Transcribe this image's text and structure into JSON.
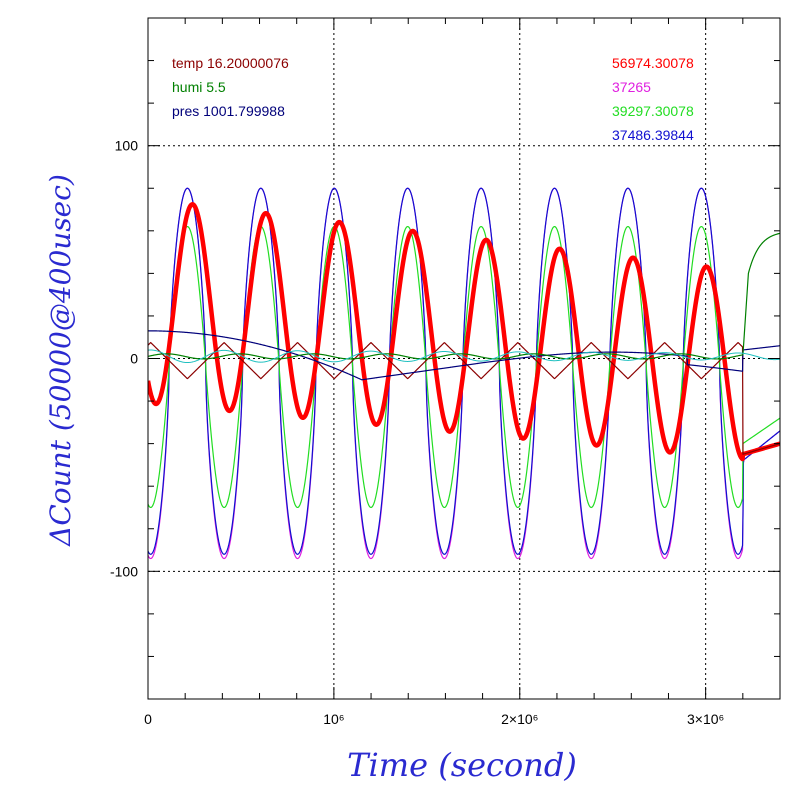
{
  "chart_data": {
    "type": "line",
    "xlabel": "Time (second)",
    "ylabel": "ΔCount (50000@400usec)",
    "xlim": [
      0,
      3400000
    ],
    "ylim": [
      -160,
      160
    ],
    "x_ticks": [
      {
        "value": 0,
        "label": "0"
      },
      {
        "value": 1000000,
        "label": "10⁶"
      },
      {
        "value": 2000000,
        "label": "2×10⁶"
      },
      {
        "value": 3000000,
        "label": "3×10⁶"
      }
    ],
    "y_ticks": [
      {
        "value": 100,
        "label": "100"
      },
      {
        "value": 0,
        "label": "0"
      },
      {
        "value": -100,
        "label": "-100"
      }
    ],
    "grid": "dotted at labeled ticks",
    "legend_left": [
      {
        "text": "temp 16.20000076",
        "color": "#8b0000"
      },
      {
        "text": "humi 5.5",
        "color": "#008000"
      },
      {
        "text": "pres 1001.799988",
        "color": "#00007a"
      }
    ],
    "legend_right": [
      {
        "text": "56974.30078",
        "color": "#ff0000"
      },
      {
        "text": "37265",
        "color": "#e020e0"
      },
      {
        "text": "39297.30078",
        "color": "#22dd22"
      },
      {
        "text": "37486.39844",
        "color": "#1010d0"
      }
    ],
    "series": [
      {
        "color": "#e020e0",
        "width": 1.2,
        "model": "magenta",
        "phase_x": 212000,
        "period": 395000,
        "amp_start": 87,
        "amp_end": 87,
        "offset": -7,
        "sharp": 1.5
      },
      {
        "color": "#1010d0",
        "width": 1.2,
        "model": "blue",
        "phase_x": 212000,
        "period": 395000,
        "amp_start": 86,
        "amp_end": 86,
        "offset": -6,
        "sharp": 1.5
      },
      {
        "color": "#22dd22",
        "width": 1.2,
        "model": "green",
        "phase_x": 212000,
        "period": 395000,
        "amp_start": 66,
        "amp_end": 66,
        "offset": -4,
        "sharp": 1.1
      },
      {
        "color": "#ff0000",
        "width": 4.5,
        "model": "red",
        "phase_x": 240000,
        "period": 395000,
        "amp_start": 48,
        "amp_end": 44,
        "offset_start": 27,
        "offset_end": -5,
        "sharp": 1.0
      },
      {
        "color": "#8b0000",
        "width": 1.2,
        "model": "temp",
        "phase_x": 212000,
        "period": 395000,
        "amp_start": 10,
        "amp_end": 10,
        "offset": -1
      },
      {
        "color": "#00007a",
        "width": 1.2,
        "model": "pres"
      },
      {
        "color": "#008000",
        "width": 1.2,
        "model": "humi"
      },
      {
        "color": "#20c0c0",
        "width": 1.0,
        "model": "cyan"
      }
    ]
  }
}
